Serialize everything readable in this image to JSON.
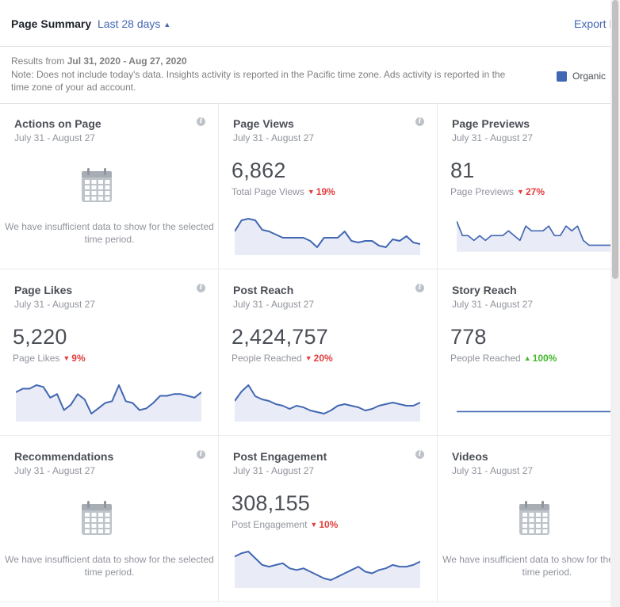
{
  "header": {
    "title": "Page Summary",
    "range_label": "Last 28 days",
    "export_label": "Export I"
  },
  "notes": {
    "results_prefix": "Results from ",
    "results_dates": "Jul 31, 2020 - Aug 27, 2020",
    "note_text": "Note: Does not include today's data. Insights activity is reported in the Pacific time zone. Ads activity is reported in the time zone of your ad account.",
    "legend_label": "Organic",
    "legend_color": "#4267b2"
  },
  "colors": {
    "line": "#4267b2",
    "fill": "#e9ecf7",
    "down": "#e23d3d",
    "up": "#42b72a"
  },
  "cards": [
    {
      "title": "Actions on Page",
      "date_range": "July 31 - August 27",
      "insufficient_text": "We have insufficient data to show for the selected time period.",
      "icon": "calendar-icon"
    },
    {
      "title": "Page Views",
      "date_range": "July 31 - August 27",
      "value": "6,862",
      "label": "Total Page Views",
      "delta": "19%",
      "delta_dir": "down",
      "trend": [
        9,
        16,
        17,
        16,
        10,
        9,
        7,
        5,
        5,
        5,
        5,
        3,
        -1,
        5,
        5,
        5,
        9,
        3,
        2,
        3,
        3,
        0,
        -1,
        4,
        3,
        6,
        2,
        1
      ]
    },
    {
      "title": "Page Previews",
      "date_range": "July 31 - August 27",
      "value": "81",
      "label": "Page Previews",
      "delta": "27%",
      "delta_dir": "down",
      "trend": [
        5,
        2,
        2,
        1,
        2,
        1,
        2,
        2,
        2,
        3,
        2,
        1,
        4,
        3,
        3,
        3,
        4,
        2,
        2,
        4,
        3,
        4,
        1,
        0,
        0,
        0,
        0,
        0
      ]
    },
    {
      "title": "Page Likes",
      "date_range": "July 31 - August 27",
      "value": "5,220",
      "label": "Page Likes",
      "delta": "9%",
      "delta_dir": "down",
      "trend": [
        10,
        12,
        12,
        14,
        13,
        7,
        9,
        0,
        3,
        9,
        6,
        -2,
        1,
        4,
        5,
        14,
        5,
        4,
        0,
        1,
        4,
        8,
        8,
        9,
        9,
        8,
        7,
        10
      ]
    },
    {
      "title": "Post Reach",
      "date_range": "July 31 - August 27",
      "value": "2,424,757",
      "label": "People Reached",
      "delta": "20%",
      "delta_dir": "down",
      "trend": [
        18,
        24,
        28,
        21,
        19,
        18,
        16,
        15,
        13,
        15,
        14,
        12,
        11,
        10,
        12,
        15,
        16,
        15,
        14,
        12,
        13,
        15,
        16,
        17,
        16,
        15,
        15,
        17
      ]
    },
    {
      "title": "Story Reach",
      "date_range": "July 31 - August 27",
      "value": "778",
      "label": "People Reached",
      "delta": "100%",
      "delta_dir": "up",
      "trend": [
        0,
        0,
        0,
        0,
        0,
        0,
        0,
        0,
        0,
        0,
        0,
        0,
        0,
        0,
        0,
        0,
        0,
        0,
        0,
        0,
        0,
        0,
        0,
        0,
        0,
        0,
        0,
        0
      ]
    },
    {
      "title": "Recommendations",
      "date_range": "July 31 - August 27",
      "insufficient_text": "We have insufficient data to show for the selected time period.",
      "icon": "calendar-icon"
    },
    {
      "title": "Post Engagement",
      "date_range": "July 31 - August 27",
      "value": "308,155",
      "label": "Post Engagement",
      "delta": "10%",
      "delta_dir": "down",
      "trend": [
        19,
        21,
        22,
        18,
        14,
        13,
        14,
        15,
        12,
        11,
        12,
        10,
        8,
        6,
        5,
        7,
        9,
        11,
        13,
        10,
        9,
        11,
        12,
        14,
        13,
        13,
        14,
        16
      ]
    },
    {
      "title": "Videos",
      "date_range": "July 31 - August 27",
      "insufficient_text": "We have insufficient data to show for the selected time period.",
      "icon": "calendar-icon"
    }
  ]
}
